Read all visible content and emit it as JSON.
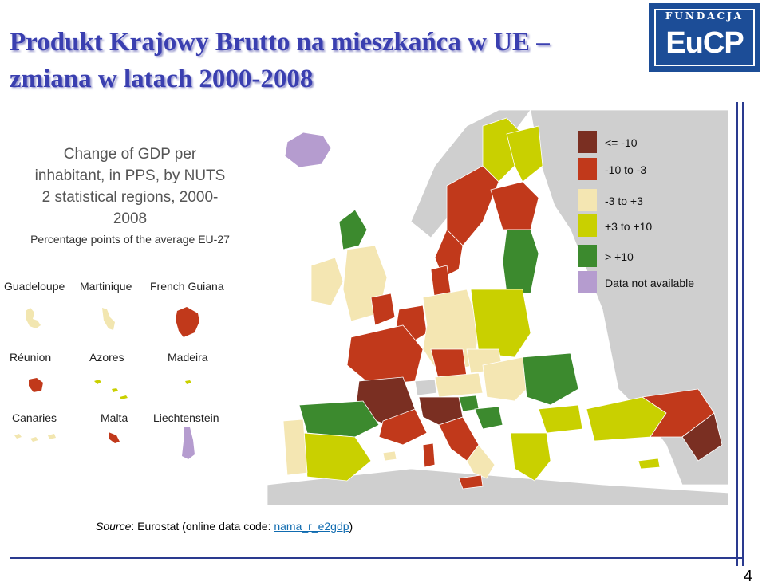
{
  "slide": {
    "title_line1": "Produkt Krajowy Brutto na mieszkańca w UE –",
    "title_line2": "zmiana w latach 2000-2008",
    "page_number": "4"
  },
  "logo": {
    "top_text": "FUNDACJA",
    "main_text": "EuCP"
  },
  "map": {
    "title_line1": "Change of GDP per",
    "title_line2": "inhabitant, in PPS, by NUTS",
    "title_line3": "2 statistical regions, 2000-",
    "title_line4": "2008",
    "subtitle": "Percentage points of the average EU-27",
    "insets": [
      {
        "label": "Guadeloupe",
        "color": "#f2e6b0"
      },
      {
        "label": "Martinique",
        "color": "#f2e6b0"
      },
      {
        "label": "French Guiana",
        "color": "#c1391b"
      },
      {
        "label": "Réunion",
        "color": "#c1391b"
      },
      {
        "label": "Azores",
        "color": "#c9d000"
      },
      {
        "label": "Madeira",
        "color": "#c9d000"
      },
      {
        "label": "Canaries",
        "color": "#f2e6b0"
      },
      {
        "label": "Malta",
        "color": "#c1391b"
      },
      {
        "label": "Liechtenstein",
        "color": "#b59ccf"
      }
    ],
    "legend": [
      {
        "label": "<= -10",
        "color": "#7a2f22"
      },
      {
        "label": "-10 to -3",
        "color": "#c1391b"
      },
      {
        "label": "-3 to +3",
        "color": "#f4e6b2"
      },
      {
        "label": "+3 to +10",
        "color": "#c9d000"
      },
      {
        "label": "> +10",
        "color": "#3c8a2e"
      },
      {
        "label": "Data not available",
        "color": "#b59ccf"
      }
    ],
    "colors": {
      "sea": "#ffffff",
      "non_eu": "#cfcfcf",
      "very_low": "#7a2f22",
      "low": "#c1391b",
      "neutral": "#f4e6b2",
      "high": "#c9d000",
      "very_high": "#3c8a2e",
      "no_data": "#b59ccf"
    }
  },
  "source": {
    "prefix": "Source",
    "text": ": Eurostat (online data code: ",
    "code": "nama_r_e2gdp",
    "suffix": ")"
  }
}
